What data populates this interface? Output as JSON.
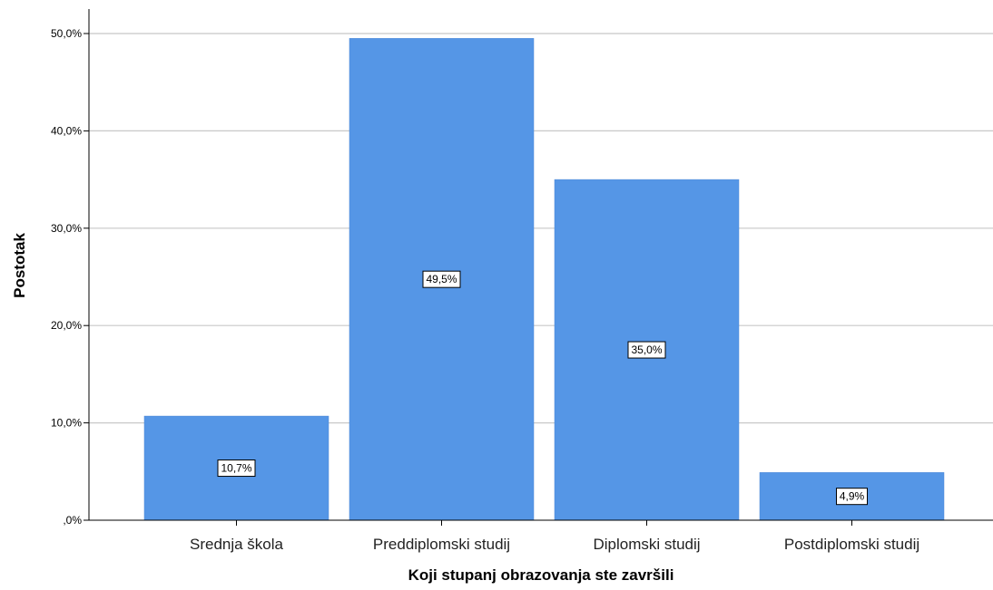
{
  "chart_data": {
    "type": "bar",
    "categories": [
      "Srednja škola",
      "Preddiplomski studij",
      "Diplomski studij",
      "Postdiplomski studij"
    ],
    "values": [
      10.7,
      49.5,
      35.0,
      4.9
    ],
    "data_labels": [
      "10,7%",
      "49,5%",
      "35,0%",
      "4,9%"
    ],
    "xlabel": "Koji stupanj obrazovanja ste završili",
    "ylabel": "Postotak",
    "ylim": [
      0,
      50
    ],
    "yticks": [
      0,
      10,
      20,
      30,
      40,
      50
    ],
    "ytick_labels": [
      ",0%",
      "10,0%",
      "20,0%",
      "30,0%",
      "40,0%",
      "50,0%"
    ],
    "grid": true,
    "bar_color": "#5596e6"
  }
}
